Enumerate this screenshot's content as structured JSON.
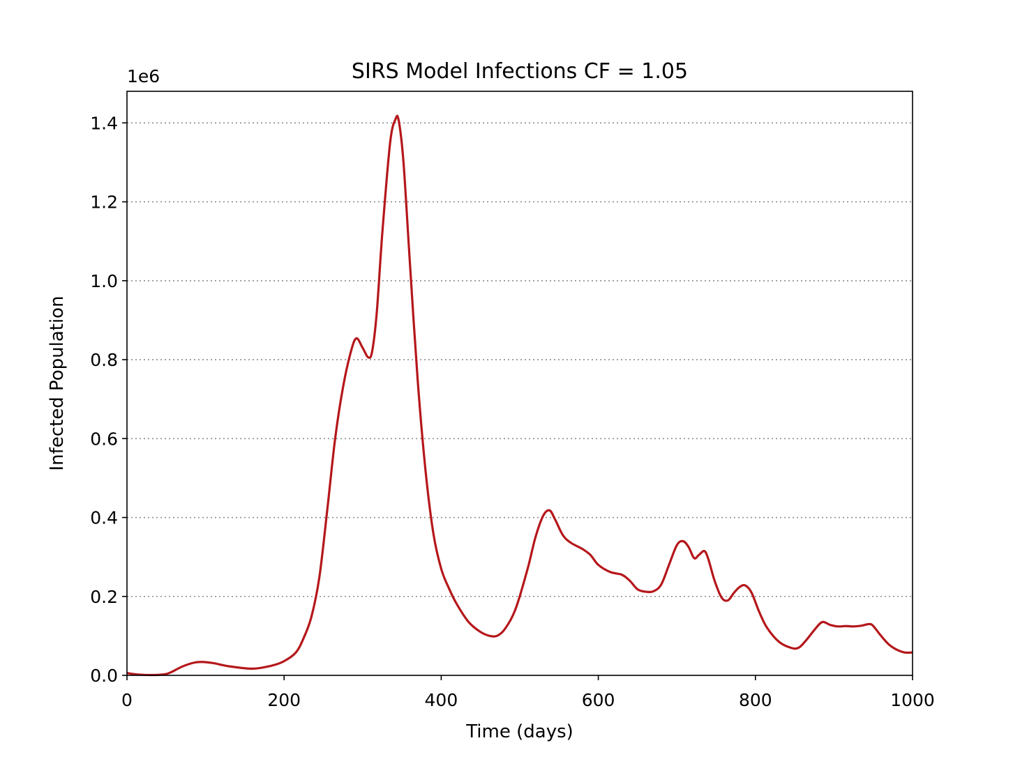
{
  "chart_data": {
    "type": "line",
    "title": "SIRS Model Infections CF = 1.05",
    "xlabel": "Time (days)",
    "ylabel": "Infected Population",
    "offset_label": "1e6",
    "xlim": [
      0,
      1000
    ],
    "ylim": [
      0,
      1.48
    ],
    "xticks": [
      0,
      200,
      400,
      600,
      800,
      1000
    ],
    "xtick_labels": [
      "0",
      "200",
      "400",
      "600",
      "800",
      "1000"
    ],
    "yticks": [
      0.0,
      0.2,
      0.4,
      0.6,
      0.8,
      1.0,
      1.2,
      1.4
    ],
    "ytick_labels": [
      "0.0",
      "0.2",
      "0.4",
      "0.6",
      "0.8",
      "1.0",
      "1.2",
      "1.4"
    ],
    "grid": "horizontal dotted",
    "series": [
      {
        "name": "Infected",
        "color": "#b5171b",
        "x": [
          0,
          10,
          25,
          45,
          55,
          70,
          85,
          95,
          110,
          130,
          160,
          185,
          200,
          215,
          225,
          235,
          245,
          255,
          265,
          275,
          285,
          292,
          300,
          307,
          312,
          318,
          325,
          335,
          342,
          346,
          352,
          360,
          370,
          380,
          390,
          400,
          410,
          420,
          435,
          450,
          462,
          472,
          482,
          495,
          510,
          520,
          530,
          538,
          545,
          555,
          565,
          580,
          590,
          600,
          615,
          630,
          640,
          650,
          660,
          670,
          680,
          690,
          700,
          708,
          715,
          722,
          728,
          735,
          740,
          748,
          757,
          765,
          773,
          780,
          787,
          795,
          805,
          815,
          830,
          845,
          855,
          865,
          875,
          885,
          895,
          905,
          915,
          925,
          935,
          945,
          950,
          960,
          970,
          980,
          990,
          1000
        ],
        "y": [
          0.006,
          0.003,
          0.001,
          0.002,
          0.007,
          0.022,
          0.032,
          0.034,
          0.031,
          0.023,
          0.017,
          0.025,
          0.036,
          0.058,
          0.095,
          0.15,
          0.25,
          0.42,
          0.6,
          0.73,
          0.82,
          0.854,
          0.83,
          0.806,
          0.82,
          0.92,
          1.12,
          1.35,
          1.41,
          1.405,
          1.3,
          1.05,
          0.75,
          0.52,
          0.36,
          0.27,
          0.22,
          0.18,
          0.135,
          0.11,
          0.1,
          0.101,
          0.12,
          0.17,
          0.27,
          0.35,
          0.405,
          0.418,
          0.395,
          0.355,
          0.336,
          0.32,
          0.305,
          0.28,
          0.262,
          0.255,
          0.24,
          0.218,
          0.212,
          0.213,
          0.23,
          0.28,
          0.33,
          0.34,
          0.325,
          0.297,
          0.305,
          0.315,
          0.295,
          0.24,
          0.197,
          0.19,
          0.21,
          0.224,
          0.228,
          0.21,
          0.16,
          0.12,
          0.085,
          0.07,
          0.07,
          0.09,
          0.115,
          0.135,
          0.128,
          0.124,
          0.125,
          0.124,
          0.126,
          0.13,
          0.125,
          0.1,
          0.078,
          0.065,
          0.058,
          0.058
        ]
      }
    ]
  }
}
